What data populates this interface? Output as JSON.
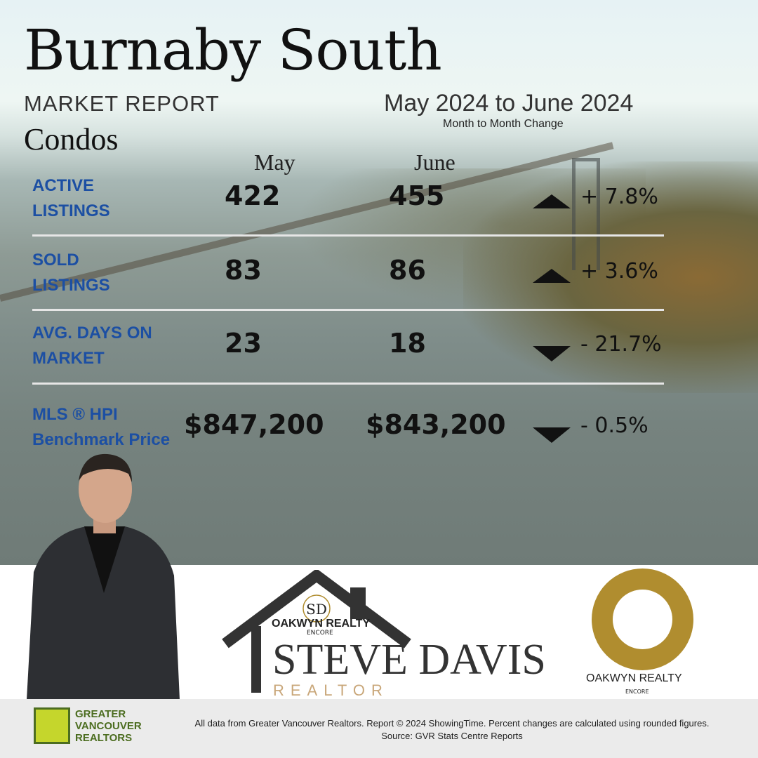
{
  "header": {
    "title": "Burnaby South",
    "subtitle": "MARKET REPORT",
    "category": "Condos",
    "date_range": "May 2024  to June 2024",
    "change_label": "Month to Month Change"
  },
  "columns": {
    "prev": "May",
    "curr": "June"
  },
  "rows": [
    {
      "label1": "ACTIVE",
      "label2": "LISTINGS",
      "prev": "422",
      "curr": "455",
      "direction": "up",
      "change": "+ 7.8%"
    },
    {
      "label1": "SOLD",
      "label2": "LISTINGS",
      "prev": "83",
      "curr": "86",
      "direction": "up",
      "change": "+ 3.6%"
    },
    {
      "label1": "AVG. DAYS ON",
      "label2": "MARKET",
      "prev": "23",
      "curr": "18",
      "direction": "down",
      "change": "- 21.7%"
    },
    {
      "label1": "MLS ®  HPI",
      "label2": "Benchmark Price",
      "prev": "$847,200",
      "curr": "$843,200",
      "direction": "down",
      "change": "- 0.5%"
    }
  ],
  "branding": {
    "agent_logo_initials": "SD",
    "agent_brokerage": "OAKWYN REALTY",
    "agent_brokerage_sub": "ENCORE",
    "agent_name": "STEVE DAVIS",
    "agent_role": "REALTOR",
    "brokerage_logo_text": "OAKWYN REALTY",
    "brokerage_logo_sub": "ENCORE",
    "gvr_logo": "GREATER VANCOUVER REALTORS"
  },
  "footer": {
    "text": "All data from Greater Vancouver Realtors. Report © 2024 ShowingTime. Percent changes are calculated using rounded figures. Source: GVR Stats Centre Reports"
  },
  "colors": {
    "label_blue": "#1c4fa3",
    "gold": "#b08d2f",
    "gvr_green": "#c5d62c"
  }
}
